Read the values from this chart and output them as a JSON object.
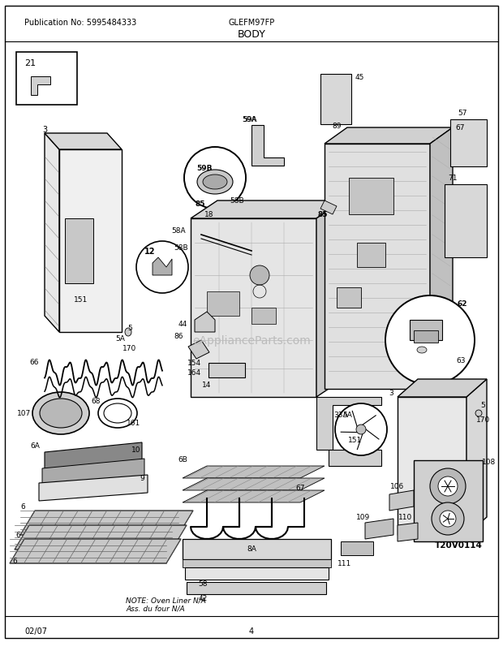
{
  "pub_no": "Publication No: 5995484333",
  "model": "GLEFM97FP",
  "section": "BODY",
  "footer_left": "02/07",
  "footer_center": "4",
  "watermark": "eApplianceParts.com",
  "bg_color": "#ffffff",
  "border_color": "#000000",
  "note_text": "NOTE: Oven Liner N/A\nAss. du four N/A",
  "t20v0114": "T20V0114",
  "label_fontsize": 6.5,
  "header_fontsize": 7.5,
  "section_fontsize": 9
}
